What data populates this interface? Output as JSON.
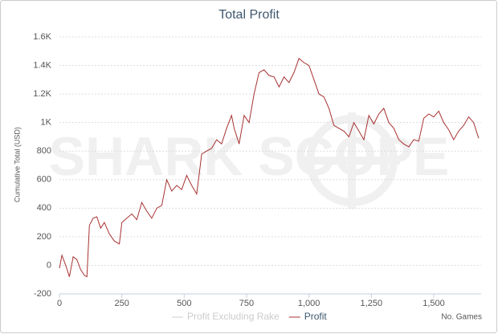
{
  "chart_data": {
    "type": "line",
    "title": "Total Profit",
    "watermark": "SHARK SCOPE",
    "y_label": "Cumulative Total (USD)",
    "x_label": "No. Games",
    "x": [
      0,
      10,
      25,
      40,
      55,
      70,
      85,
      100,
      110,
      120,
      135,
      150,
      165,
      180,
      200,
      220,
      240,
      250,
      270,
      290,
      310,
      330,
      350,
      370,
      390,
      410,
      430,
      450,
      470,
      490,
      510,
      530,
      550,
      570,
      590,
      610,
      630,
      650,
      670,
      690,
      700,
      720,
      740,
      760,
      780,
      800,
      820,
      840,
      860,
      880,
      900,
      920,
      940,
      960,
      980,
      1000,
      1020,
      1040,
      1060,
      1080,
      1100,
      1120,
      1140,
      1160,
      1180,
      1200,
      1220,
      1240,
      1260,
      1280,
      1300,
      1320,
      1340,
      1360,
      1380,
      1400,
      1420,
      1440,
      1460,
      1480,
      1500,
      1520,
      1540,
      1560,
      1580,
      1600,
      1620,
      1640,
      1660,
      1680
    ],
    "series": [
      {
        "name": "Profit",
        "color": "#a83232",
        "values": [
          -20,
          70,
          0,
          -80,
          60,
          40,
          -30,
          -70,
          -80,
          280,
          330,
          340,
          260,
          300,
          220,
          170,
          150,
          300,
          330,
          360,
          320,
          440,
          380,
          330,
          400,
          420,
          600,
          520,
          560,
          530,
          630,
          560,
          500,
          780,
          800,
          820,
          880,
          850,
          960,
          1050,
          960,
          850,
          1050,
          1000,
          1200,
          1350,
          1370,
          1330,
          1320,
          1250,
          1320,
          1280,
          1350,
          1450,
          1420,
          1400,
          1300,
          1200,
          1180,
          1100,
          980,
          960,
          940,
          900,
          1000,
          940,
          880,
          1050,
          990,
          1060,
          1100,
          1000,
          960,
          880,
          850,
          830,
          880,
          870,
          1030,
          1060,
          1040,
          1080,
          1000,
          950,
          880,
          940,
          980,
          1040,
          1000,
          890
        ]
      }
    ],
    "hidden_series": [
      {
        "name": "Profit Excluding Rake",
        "color": "#cccccc"
      }
    ],
    "xlim": [
      0,
      1690
    ],
    "ylim": [
      -200,
      1600
    ],
    "xticks": [
      0,
      250,
      500,
      750,
      {
        "value": 1000,
        "label": "1,000"
      },
      {
        "value": 1250,
        "label": "1,250"
      },
      {
        "value": 1500,
        "label": "1,500"
      }
    ],
    "yticks": [
      -200,
      0,
      200,
      400,
      600,
      800,
      {
        "value": 1000,
        "label": "1K"
      },
      {
        "value": 1200,
        "label": "1.2K"
      },
      {
        "value": 1400,
        "label": "1.4K"
      },
      {
        "value": 1600,
        "label": "1.6K"
      }
    ],
    "grid": true
  }
}
